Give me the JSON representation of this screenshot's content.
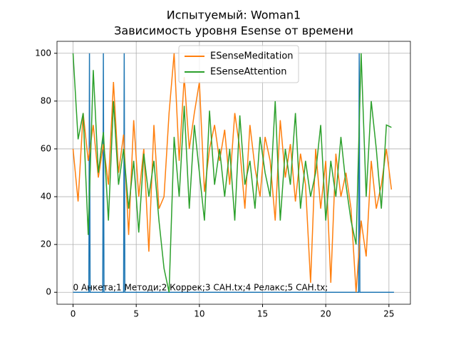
{
  "chart_data": {
    "type": "line",
    "title": "Испытуемый: Woman1",
    "subtitle": "Зависимость уровня Esense от времени",
    "xlim": [
      -1.27,
      26.7
    ],
    "ylim": [
      -5,
      105
    ],
    "xticks": [
      0,
      5,
      10,
      15,
      20,
      25
    ],
    "yticks": [
      0,
      20,
      40,
      60,
      80,
      100
    ],
    "grid": true,
    "legend": "upper center",
    "annotation": {
      "text": "0 Анкета;1 Методи;2 Коррек;3 САН.tx;4 Релакс;5 САН.tx;",
      "x": 0,
      "y": 0
    },
    "series": [
      {
        "color": "#1f77b4",
        "x": [
          0,
          1.25,
          1.3,
          1.35,
          2.35,
          2.4,
          2.45,
          4.0,
          4.05,
          4.1,
          22.6,
          22.65,
          22.7,
          25.4
        ],
        "values": [
          0,
          0,
          100,
          0,
          0,
          100,
          0,
          0,
          100,
          0,
          0,
          100,
          0,
          0
        ]
      },
      {
        "name": "ESenseMeditation",
        "color": "#ff7f0e",
        "x": [
          0,
          0.4,
          0.8,
          1.2,
          1.6,
          2,
          2.4,
          2.8,
          3.2,
          3.6,
          4,
          4.4,
          4.8,
          5.2,
          5.6,
          6,
          6.4,
          6.8,
          7.2,
          7.6,
          8,
          8.4,
          8.8,
          9.2,
          9.6,
          10,
          10.4,
          10.8,
          11.2,
          11.6,
          12,
          12.4,
          12.8,
          13.2,
          13.6,
          14,
          14.4,
          14.8,
          15.2,
          15.6,
          16,
          16.4,
          16.8,
          17.2,
          17.6,
          18,
          18.4,
          18.8,
          19.2,
          19.6,
          20,
          20.4,
          20.8,
          21.2,
          21.6,
          22,
          22.4,
          22.8,
          23.2,
          23.6,
          24,
          24.4,
          24.8,
          25.2
        ],
        "values": [
          60,
          38,
          75,
          55,
          70,
          48,
          62,
          45,
          88,
          50,
          66,
          24,
          72,
          40,
          60,
          17,
          70,
          35,
          40,
          75,
          100,
          55,
          90,
          60,
          75,
          88,
          42,
          60,
          70,
          55,
          68,
          45,
          75,
          60,
          35,
          70,
          52,
          40,
          65,
          55,
          30,
          72,
          48,
          62,
          38,
          58,
          45,
          4,
          60,
          35,
          55,
          4,
          58,
          40,
          50,
          35,
          0,
          30,
          15,
          55,
          35,
          45,
          60,
          43
        ]
      },
      {
        "name": "ESenseAttention",
        "color": "#2ca02c",
        "x": [
          0,
          0.4,
          0.8,
          1.2,
          1.6,
          2,
          2.4,
          2.8,
          3.2,
          3.6,
          4,
          4.4,
          4.8,
          5.2,
          5.6,
          6,
          6.4,
          6.8,
          7.2,
          7.6,
          8,
          8.4,
          8.8,
          9.2,
          9.6,
          10,
          10.4,
          10.8,
          11.2,
          11.6,
          12,
          12.4,
          12.8,
          13.2,
          13.6,
          14,
          14.4,
          14.8,
          15.2,
          15.6,
          16,
          16.4,
          16.8,
          17.2,
          17.6,
          18,
          18.4,
          18.8,
          19.2,
          19.6,
          20,
          20.4,
          20.8,
          21.2,
          21.6,
          22,
          22.4,
          22.8,
          23.2,
          23.6,
          24,
          24.4,
          24.8,
          25.2
        ],
        "values": [
          100,
          64,
          75,
          24,
          93,
          50,
          67,
          30,
          80,
          45,
          60,
          35,
          55,
          25,
          58,
          40,
          55,
          30,
          10,
          0,
          65,
          40,
          78,
          35,
          70,
          50,
          30,
          76,
          45,
          60,
          40,
          60,
          30,
          74,
          45,
          55,
          35,
          65,
          50,
          40,
          80,
          30,
          60,
          45,
          75,
          35,
          55,
          40,
          50,
          70,
          30,
          55,
          40,
          65,
          45,
          30,
          20,
          100,
          40,
          80,
          60,
          35,
          70,
          69
        ]
      }
    ]
  }
}
